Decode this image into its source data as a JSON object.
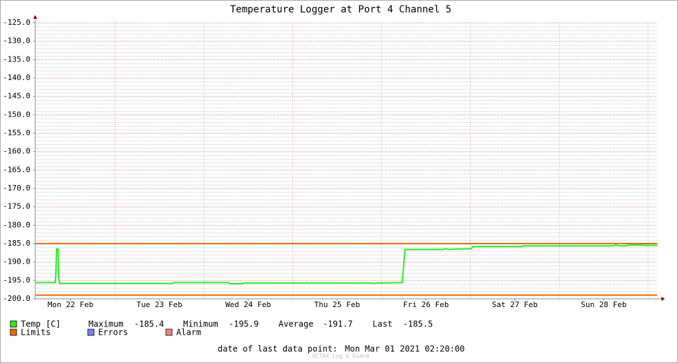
{
  "chart_data": {
    "type": "line",
    "title": "Temperature Logger at Port 4 Channel 5",
    "xlim": [
      -0.397,
      6.603
    ],
    "xticks": [
      {
        "value": 0,
        "label": "Mon 22 Feb"
      },
      {
        "value": 1,
        "label": "Tue 23 Feb"
      },
      {
        "value": 2,
        "label": "Wed 24 Feb"
      },
      {
        "value": 3,
        "label": "Thu 25 Feb"
      },
      {
        "value": 4,
        "label": "Fri 26 Feb"
      },
      {
        "value": 5,
        "label": "Sat 27 Feb"
      },
      {
        "value": 6,
        "label": "Sun 28 Feb"
      }
    ],
    "ylim": [
      -200,
      -125
    ],
    "yticks": [
      {
        "value": -125,
        "label": "-125.0"
      },
      {
        "value": -130,
        "label": "-130.0"
      },
      {
        "value": -135,
        "label": "-135.0"
      },
      {
        "value": -140,
        "label": "-140.0"
      },
      {
        "value": -145,
        "label": "-145.0"
      },
      {
        "value": -150,
        "label": "-150.0"
      },
      {
        "value": -155,
        "label": "-155.0"
      },
      {
        "value": -160,
        "label": "-160.0"
      },
      {
        "value": -165,
        "label": "-165.0"
      },
      {
        "value": -170,
        "label": "-170.0"
      },
      {
        "value": -175,
        "label": "-175.0"
      },
      {
        "value": -180,
        "label": "-180.0"
      },
      {
        "value": -185,
        "label": "-185.0"
      },
      {
        "value": -190,
        "label": "-190.0"
      },
      {
        "value": -195,
        "label": "-195.0"
      },
      {
        "value": -200,
        "label": "-200.0"
      }
    ],
    "grid": true,
    "x": [
      -0.397,
      -0.171,
      -0.163,
      -0.156,
      -0.14,
      -0.132,
      -0.124,
      1.151,
      1.159,
      1.773,
      1.797,
      1.929,
      1.944,
      3.368,
      3.407,
      3.446,
      3.733,
      3.749,
      3.764,
      4.184,
      4.223,
      4.262,
      4.301,
      4.511,
      4.527,
      5.079,
      5.095,
      6.113,
      6.129,
      6.191,
      6.246,
      6.284,
      6.44,
      6.471,
      6.603
    ],
    "series": [
      {
        "name": "Temp [C]",
        "color": "#22ee22",
        "values": [
          -195.6,
          -195.6,
          -192,
          -186.5,
          -186.5,
          -194,
          -195.8,
          -195.8,
          -195.6,
          -195.6,
          -195.9,
          -195.9,
          -195.7,
          -195.7,
          -195.8,
          -195.7,
          -195.6,
          -191,
          -186.6,
          -186.6,
          -186.4,
          -186.6,
          -186.5,
          -186.4,
          -185.8,
          -185.8,
          -185.6,
          -185.6,
          -185.4,
          -185.6,
          -185.6,
          -185.4,
          -185.4,
          -185.5,
          -185.5
        ]
      }
    ],
    "limits": {
      "name": "Limits",
      "color": "#ff6600",
      "values": [
        -185,
        -199
      ]
    },
    "extra_legend": [
      {
        "name": "Errors",
        "color": "#7f7fff"
      },
      {
        "name": "Alarm",
        "color": "#ff7f7f"
      }
    ],
    "stats": [
      {
        "label": "Maximum",
        "value": -185.4
      },
      {
        "label": "Minimum",
        "value": -195.9
      },
      {
        "label": "Average",
        "value": -191.7
      },
      {
        "label": "Last",
        "value": -185.5
      }
    ],
    "last_point_label": "date of last data point:",
    "last_point": "Mon Mar 01 2021 02:20:00",
    "footer": "OCTAX Log & Guard"
  }
}
